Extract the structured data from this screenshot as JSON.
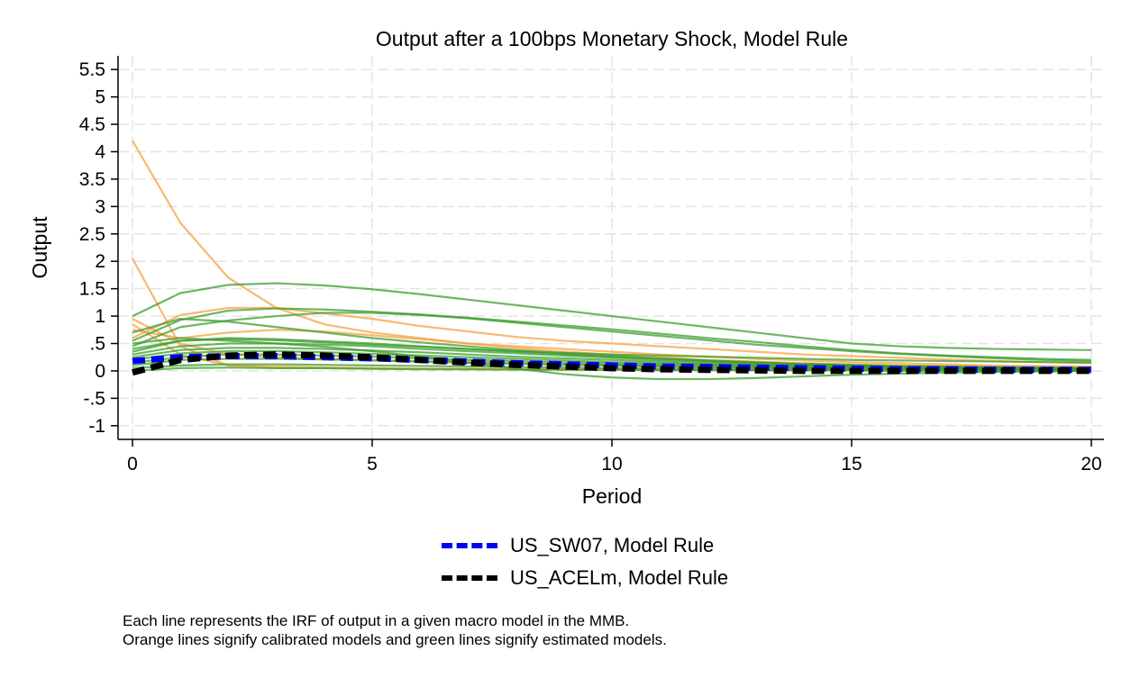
{
  "chart_data": {
    "type": "line",
    "title": "Output after a 100bps Monetary Shock, Model Rule",
    "xlabel": "Period",
    "ylabel": "Output",
    "xlim": [
      0,
      20
    ],
    "ylim": [
      -1.25,
      5.75
    ],
    "xticks": [
      0,
      5,
      10,
      15,
      20
    ],
    "xtick_labels": [
      "0",
      "5",
      "10",
      "15",
      "20"
    ],
    "yticks": [
      -1,
      -0.5,
      0,
      0.5,
      1,
      1.5,
      2,
      2.5,
      3,
      3.5,
      4,
      4.5,
      5,
      5.5
    ],
    "ytick_labels": [
      "-1",
      "-.5",
      "0",
      ".5",
      "1",
      "1.5",
      "2",
      "2.5",
      "3",
      "3.5",
      "4",
      "4.5",
      "5",
      "5.5"
    ],
    "grid": true,
    "legend_position": "bottom-center",
    "colors": {
      "calibrated": "#f5a142",
      "estimated": "#3c9d2e",
      "sw07": "#0000ff",
      "acelm": "#000000"
    },
    "series": [
      {
        "group": "calibrated",
        "values": [
          4.2,
          2.7,
          1.7,
          1.15,
          0.85,
          0.7,
          0.6,
          0.5,
          0.42,
          0.35,
          0.3,
          0.25,
          0.2,
          0.17,
          0.14,
          0.12,
          0.1,
          0.09,
          0.08,
          0.07,
          0.06
        ]
      },
      {
        "group": "calibrated",
        "values": [
          2.05,
          0.45,
          0.1,
          0.05,
          0.05,
          0.04,
          0.04,
          0.03,
          0.03,
          0.02,
          0.02,
          0.02,
          0.02,
          0.01,
          0.01,
          0.01,
          0.01,
          0.01,
          0.01,
          0.01,
          0.0
        ]
      },
      {
        "group": "calibrated",
        "values": [
          0.95,
          0.5,
          0.3,
          0.25,
          0.22,
          0.2,
          0.18,
          0.16,
          0.14,
          0.12,
          0.1,
          0.09,
          0.08,
          0.07,
          0.06,
          0.05,
          0.05,
          0.04,
          0.04,
          0.03,
          0.03
        ]
      },
      {
        "group": "calibrated",
        "values": [
          0.6,
          1.02,
          1.15,
          1.15,
          1.05,
          0.95,
          0.82,
          0.72,
          0.62,
          0.55,
          0.5,
          0.45,
          0.4,
          0.35,
          0.3,
          0.27,
          0.24,
          0.21,
          0.18,
          0.16,
          0.14
        ]
      },
      {
        "group": "calibrated",
        "values": [
          0.75,
          0.6,
          0.7,
          0.75,
          0.72,
          0.65,
          0.58,
          0.5,
          0.45,
          0.4,
          0.35,
          0.3,
          0.26,
          0.22,
          0.19,
          0.16,
          0.14,
          0.12,
          0.1,
          0.09,
          0.08
        ]
      },
      {
        "group": "calibrated",
        "values": [
          0.85,
          0.3,
          0.1,
          0.08,
          0.06,
          0.05,
          0.04,
          0.04,
          0.03,
          0.03,
          0.02,
          0.02,
          0.02,
          0.02,
          0.01,
          0.01,
          0.01,
          0.01,
          0.01,
          0.0,
          0.0
        ]
      },
      {
        "group": "estimated",
        "values": [
          1.0,
          1.42,
          1.57,
          1.6,
          1.56,
          1.49,
          1.4,
          1.3,
          1.2,
          1.1,
          1.0,
          0.9,
          0.8,
          0.7,
          0.6,
          0.5,
          0.45,
          0.42,
          0.4,
          0.39,
          0.38
        ]
      },
      {
        "group": "estimated",
        "values": [
          0.55,
          0.93,
          1.1,
          1.14,
          1.12,
          1.08,
          1.03,
          0.97,
          0.9,
          0.83,
          0.76,
          0.68,
          0.6,
          0.53,
          0.45,
          0.38,
          0.32,
          0.28,
          0.25,
          0.22,
          0.2
        ]
      },
      {
        "group": "estimated",
        "values": [
          0.45,
          0.8,
          0.92,
          1.0,
          1.06,
          1.06,
          1.02,
          0.96,
          0.88,
          0.8,
          0.72,
          0.64,
          0.56,
          0.48,
          0.42,
          0.36,
          0.31,
          0.27,
          0.23,
          0.2,
          0.18
        ]
      },
      {
        "group": "estimated",
        "values": [
          0.7,
          0.95,
          0.9,
          0.8,
          0.7,
          0.6,
          0.52,
          0.45,
          0.38,
          0.32,
          0.27,
          0.23,
          0.19,
          0.16,
          0.13,
          0.11,
          0.09,
          0.08,
          0.07,
          0.06,
          0.05
        ]
      },
      {
        "group": "estimated",
        "values": [
          0.5,
          0.6,
          0.55,
          0.5,
          0.44,
          0.36,
          0.26,
          0.15,
          0.04,
          -0.06,
          -0.12,
          -0.15,
          -0.15,
          -0.13,
          -0.1,
          -0.07,
          -0.05,
          -0.03,
          -0.02,
          -0.01,
          0.0
        ]
      },
      {
        "group": "estimated",
        "values": [
          0.35,
          0.55,
          0.6,
          0.58,
          0.54,
          0.5,
          0.45,
          0.4,
          0.35,
          0.3,
          0.26,
          0.22,
          0.18,
          0.15,
          0.12,
          0.1,
          0.08,
          0.07,
          0.06,
          0.05,
          0.04
        ]
      },
      {
        "group": "estimated",
        "values": [
          0.3,
          0.45,
          0.5,
          0.5,
          0.48,
          0.45,
          0.4,
          0.36,
          0.32,
          0.28,
          0.24,
          0.2,
          0.17,
          0.14,
          0.12,
          0.1,
          0.08,
          0.07,
          0.06,
          0.05,
          0.04
        ]
      },
      {
        "group": "estimated",
        "values": [
          0.25,
          0.38,
          0.42,
          0.42,
          0.4,
          0.37,
          0.34,
          0.3,
          0.26,
          0.23,
          0.2,
          0.17,
          0.14,
          0.12,
          0.1,
          0.08,
          0.07,
          0.06,
          0.05,
          0.04,
          0.03
        ]
      },
      {
        "group": "estimated",
        "values": [
          0.2,
          0.32,
          0.36,
          0.36,
          0.34,
          0.31,
          0.28,
          0.25,
          0.22,
          0.19,
          0.16,
          0.14,
          0.12,
          0.1,
          0.08,
          0.07,
          0.06,
          0.05,
          0.04,
          0.03,
          0.03
        ]
      },
      {
        "group": "estimated",
        "values": [
          0.15,
          0.25,
          0.3,
          0.3,
          0.28,
          0.26,
          0.23,
          0.2,
          0.18,
          0.15,
          0.13,
          0.11,
          0.1,
          0.08,
          0.07,
          0.06,
          0.05,
          0.04,
          0.03,
          0.03,
          0.02
        ]
      },
      {
        "group": "estimated",
        "values": [
          0.1,
          0.2,
          0.22,
          0.22,
          0.21,
          0.19,
          0.17,
          0.15,
          0.13,
          0.11,
          0.1,
          0.08,
          0.07,
          0.06,
          0.05,
          0.04,
          0.04,
          0.03,
          0.03,
          0.02,
          0.02
        ]
      },
      {
        "group": "estimated",
        "values": [
          0.05,
          0.1,
          0.12,
          0.12,
          0.11,
          0.1,
          0.09,
          0.08,
          0.07,
          0.06,
          0.05,
          0.04,
          0.04,
          0.03,
          0.03,
          0.02,
          0.02,
          0.02,
          0.01,
          0.01,
          0.01
        ]
      },
      {
        "group": "estimated",
        "values": [
          0.4,
          0.55,
          0.58,
          0.56,
          0.52,
          0.48,
          0.44,
          0.4,
          0.36,
          0.33,
          0.3,
          0.28,
          0.26,
          0.24,
          0.22,
          0.2,
          0.19,
          0.18,
          0.17,
          0.16,
          0.15
        ]
      },
      {
        "group": "estimated",
        "values": [
          0.0,
          0.05,
          0.06,
          0.05,
          0.05,
          0.04,
          0.03,
          0.03,
          0.02,
          0.02,
          0.02,
          0.01,
          0.01,
          0.01,
          0.01,
          0.01,
          0.0,
          0.0,
          0.0,
          0.0,
          0.0
        ]
      },
      {
        "group": "sw07",
        "name": "US_SW07, Model Rule",
        "values": [
          0.18,
          0.25,
          0.27,
          0.27,
          0.25,
          0.23,
          0.2,
          0.17,
          0.14,
          0.12,
          0.1,
          0.08,
          0.07,
          0.06,
          0.05,
          0.04,
          0.03,
          0.03,
          0.02,
          0.02,
          0.02
        ]
      },
      {
        "group": "acelm",
        "name": "US_ACELm, Model Rule",
        "values": [
          -0.03,
          0.2,
          0.28,
          0.3,
          0.28,
          0.25,
          0.2,
          0.15,
          0.11,
          0.08,
          0.05,
          0.03,
          0.02,
          0.01,
          0.0,
          0.0,
          0.0,
          0.0,
          0.0,
          0.0,
          0.0
        ]
      }
    ]
  },
  "legend": {
    "items": [
      {
        "label": "US_SW07, Model Rule",
        "color": "#0000ff"
      },
      {
        "label": "US_ACELm, Model Rule",
        "color": "#000000"
      }
    ]
  },
  "note": {
    "line1": "Each line represents the IRF of output in a given macro model in the MMB.",
    "line2": "Orange lines signify calibrated models and green lines signify estimated models."
  }
}
